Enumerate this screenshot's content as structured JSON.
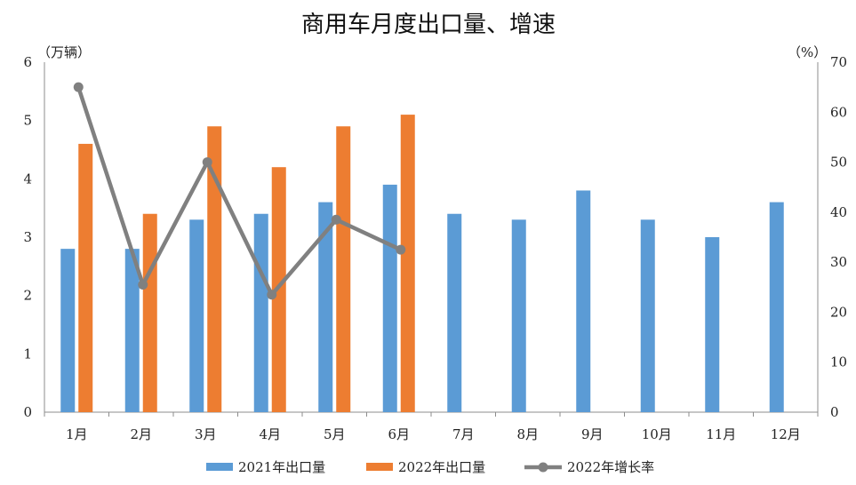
{
  "chart_data": {
    "type": "bar",
    "title": "商用车月度出口量、增速",
    "left_unit": "（万辆）",
    "right_unit": "（%）",
    "categories": [
      "1月",
      "2月",
      "3月",
      "4月",
      "5月",
      "6月",
      "7月",
      "8月",
      "9月",
      "10月",
      "11月",
      "12月"
    ],
    "series": [
      {
        "name": "2021年出口量",
        "type": "bar",
        "axis": "left",
        "color": "#5B9BD5",
        "values": [
          2.8,
          2.8,
          3.3,
          3.4,
          3.6,
          3.9,
          3.4,
          3.3,
          3.8,
          3.3,
          3.0,
          3.6
        ]
      },
      {
        "name": "2022年出口量",
        "type": "bar",
        "axis": "left",
        "color": "#ED7D31",
        "values": [
          4.6,
          3.4,
          4.9,
          4.2,
          4.9,
          5.1,
          null,
          null,
          null,
          null,
          null,
          null
        ]
      },
      {
        "name": "2022年增长率",
        "type": "line",
        "axis": "right",
        "color": "#808080",
        "values": [
          65,
          25.5,
          50,
          23.5,
          38.5,
          32.5,
          null,
          null,
          null,
          null,
          null,
          null
        ]
      }
    ],
    "ylim_left": [
      0,
      6
    ],
    "yticks_left": [
      "0",
      "1",
      "2",
      "3",
      "4",
      "5",
      "6"
    ],
    "ylim_right": [
      0,
      70
    ],
    "yticks_right": [
      "0",
      "10",
      "20",
      "30",
      "40",
      "50",
      "60",
      "70"
    ],
    "grid": false,
    "legend_position": "bottom"
  }
}
